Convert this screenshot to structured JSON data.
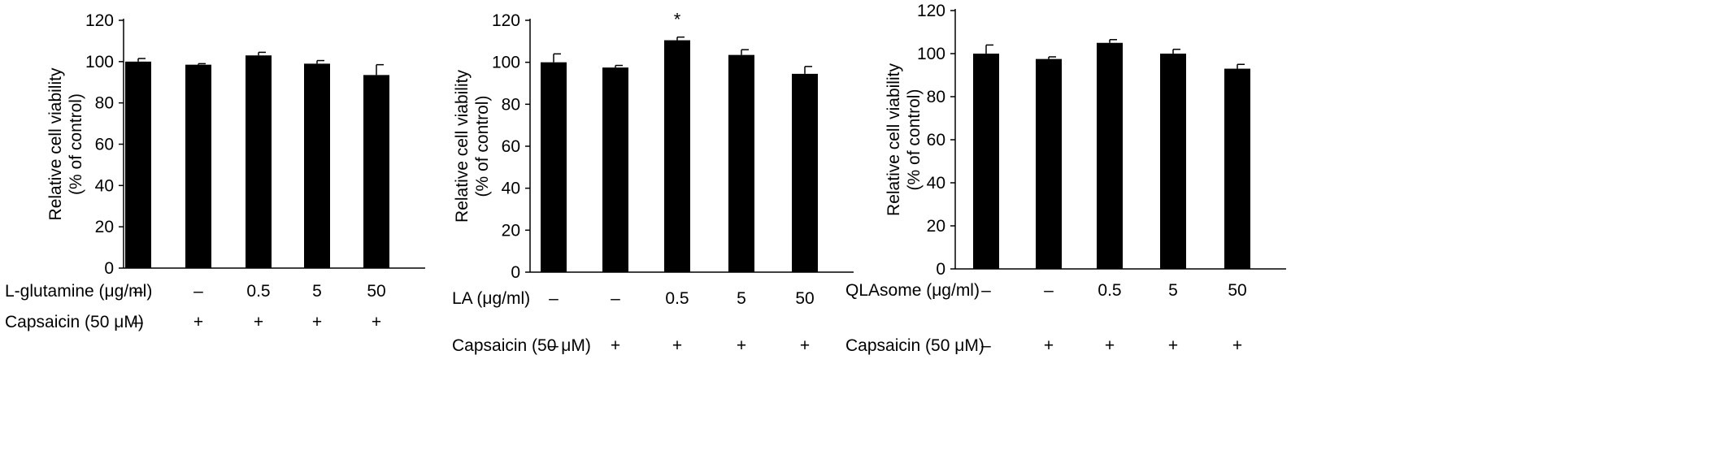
{
  "chart_data": [
    {
      "type": "bar",
      "title": "",
      "ylabel_line1": "Relative cell viability",
      "ylabel_line2": "(% of control)",
      "ylim": [
        0,
        120
      ],
      "yticks": [
        0,
        20,
        40,
        60,
        80,
        100,
        120
      ],
      "values": [
        100,
        98.5,
        103,
        99,
        93.5
      ],
      "errors": [
        1.5,
        0.5,
        1.5,
        1.5,
        5
      ],
      "significance": [
        "",
        "",
        "",
        "",
        ""
      ],
      "treatment_label": "L-glutamine (μg/ml)",
      "treatment_values": [
        "–",
        "–",
        "0.5",
        "5",
        "50"
      ],
      "capsaicin_label": "Capsaicin (50 μM)",
      "capsaicin_values": [
        "–",
        "+",
        "+",
        "+",
        "+"
      ]
    },
    {
      "type": "bar",
      "title": "",
      "ylabel_line1": "Relative cell viability",
      "ylabel_line2": "(% of control)",
      "ylim": [
        0,
        120
      ],
      "yticks": [
        0,
        20,
        40,
        60,
        80,
        100,
        120
      ],
      "values": [
        100,
        97.5,
        110.5,
        103.5,
        94.5
      ],
      "errors": [
        4,
        1,
        1.5,
        2.5,
        3.5
      ],
      "significance": [
        "",
        "",
        "*",
        "",
        ""
      ],
      "treatment_label": "LA (μg/ml)",
      "treatment_values": [
        "–",
        "–",
        "0.5",
        "5",
        "50"
      ],
      "capsaicin_label": "Capsaicin (50 μM)",
      "capsaicin_values": [
        "–",
        "+",
        "+",
        "+",
        "+"
      ]
    },
    {
      "type": "bar",
      "title": "",
      "ylabel_line1": "Relative cell viability",
      "ylabel_line2": "(% of control)",
      "ylim": [
        0,
        120
      ],
      "yticks": [
        0,
        20,
        40,
        60,
        80,
        100,
        120
      ],
      "values": [
        100,
        97.5,
        105,
        100,
        93
      ],
      "errors": [
        4,
        1,
        1.5,
        2,
        2
      ],
      "significance": [
        "",
        "",
        "",
        "",
        ""
      ],
      "treatment_label": "QLAsome (μg/ml)",
      "treatment_values": [
        "–",
        "–",
        "0.5",
        "5",
        "50"
      ],
      "capsaicin_label": "Capsaicin (50 μM)",
      "capsaicin_values": [
        "–",
        "+",
        "+",
        "+",
        "+"
      ]
    }
  ]
}
